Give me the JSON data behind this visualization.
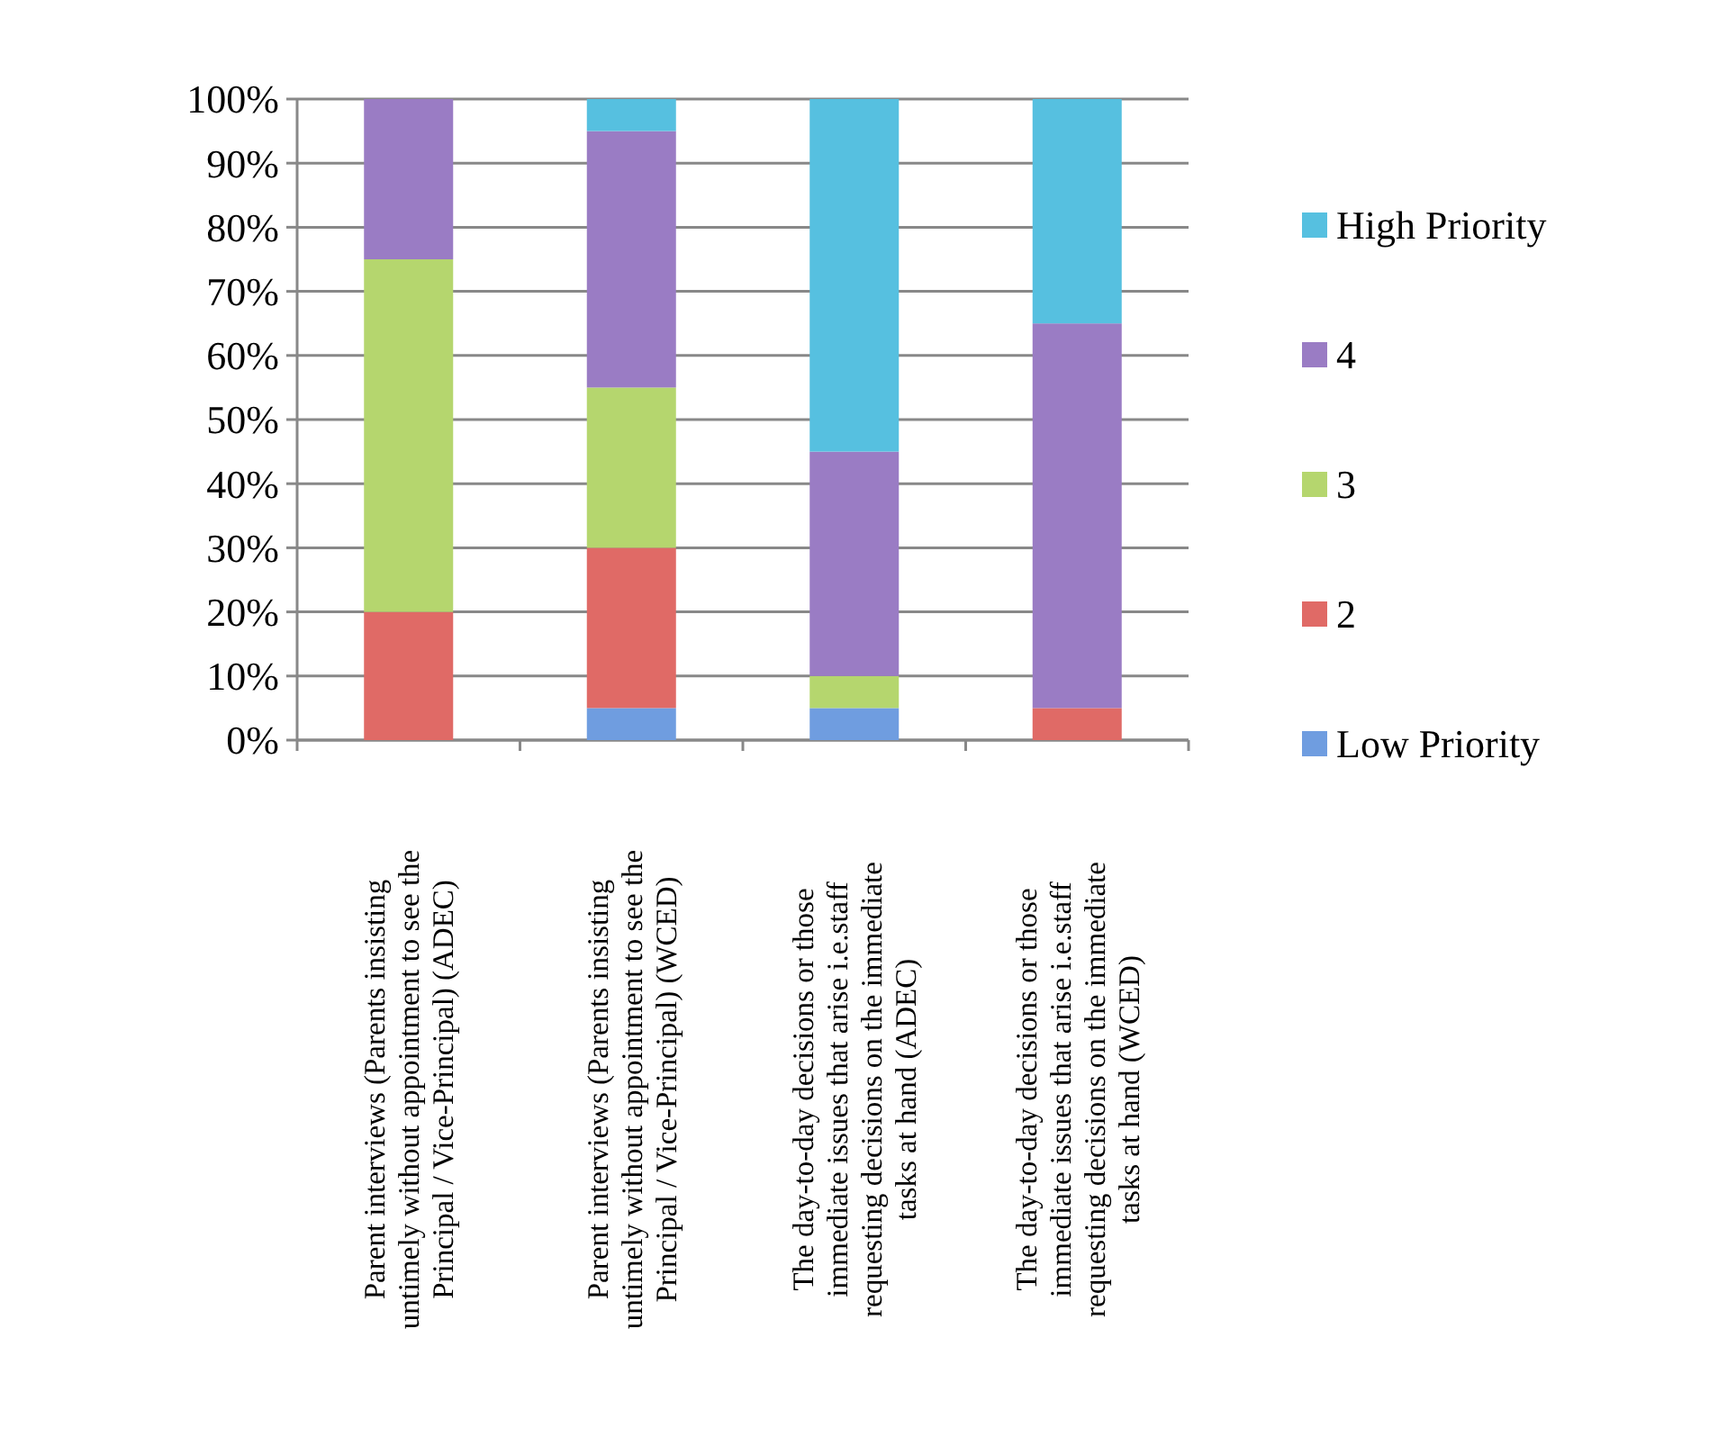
{
  "chart_data": {
    "type": "bar",
    "stacked": true,
    "categories": [
      "Parent interviews (Parents insisting untimely without appointment to see the Principal / Vice-Principal) (ADEC)",
      "Parent interviews (Parents insisting untimely without appointment to see the Principal / Vice-Principal) (WCED)",
      "The day-to-day decisions or those immediate issues that arise i.e.staff requesting decisions on the immediate tasks at hand (ADEC)",
      "The day-to-day decisions or those immediate issues that arise i.e.staff requesting decisions on the immediate tasks at hand (WCED)"
    ],
    "series": [
      {
        "name": "Low Priority",
        "color": "#6f9de0",
        "values": [
          0,
          5,
          5,
          0
        ]
      },
      {
        "name": "2",
        "color": "#e06a66",
        "values": [
          20,
          25,
          0,
          5
        ]
      },
      {
        "name": "3",
        "color": "#b5d66e",
        "values": [
          55,
          25,
          5,
          0
        ]
      },
      {
        "name": "4",
        "color": "#9a7cc4",
        "values": [
          25,
          40,
          35,
          60
        ]
      },
      {
        "name": "High Priority",
        "color": "#56c0e0",
        "values": [
          0,
          5,
          55,
          35
        ]
      }
    ],
    "ylim": [
      0,
      100
    ],
    "yticks": [
      {
        "value": 0,
        "label": "0%"
      },
      {
        "value": 10,
        "label": "10%"
      },
      {
        "value": 20,
        "label": "20%"
      },
      {
        "value": 30,
        "label": "30%"
      },
      {
        "value": 40,
        "label": "40%"
      },
      {
        "value": 50,
        "label": "50%"
      },
      {
        "value": 60,
        "label": "60%"
      },
      {
        "value": 70,
        "label": "70%"
      },
      {
        "value": 80,
        "label": "80%"
      },
      {
        "value": 90,
        "label": "90%"
      },
      {
        "value": 100,
        "label": "100%"
      }
    ],
    "grid": "y",
    "legend": "right"
  }
}
